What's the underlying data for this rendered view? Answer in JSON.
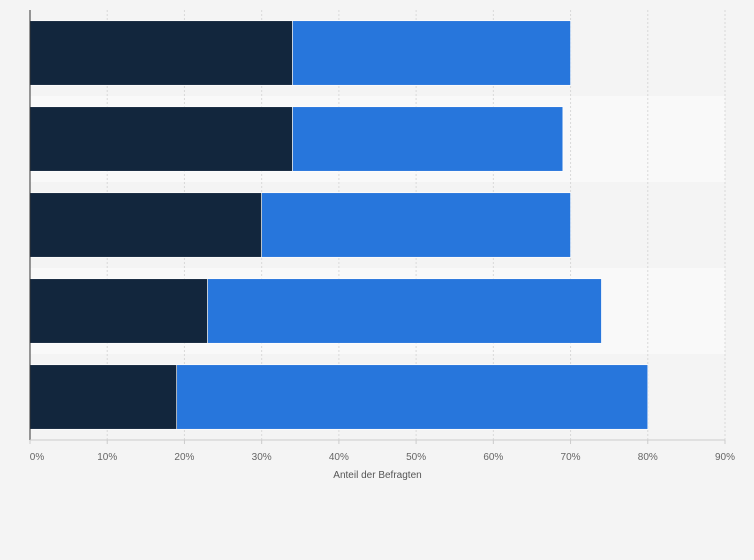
{
  "chart_data": {
    "type": "bar",
    "orientation": "horizontal",
    "stacked": true,
    "title": "",
    "xlabel": "Anteil der Befragten",
    "ylabel": "",
    "xlim": [
      0,
      90
    ],
    "x_ticks": [
      0,
      10,
      20,
      30,
      40,
      50,
      60,
      70,
      80,
      90
    ],
    "x_tick_labels": [
      "0%",
      "10%",
      "20%",
      "30%",
      "40%",
      "50%",
      "60%",
      "70%",
      "80%",
      "90%"
    ],
    "grid": true,
    "categories": [
      "",
      "",
      "",
      "",
      ""
    ],
    "series": [
      {
        "name": "",
        "color": "#12263d",
        "values": [
          34,
          34,
          30,
          23,
          19
        ]
      },
      {
        "name": "",
        "color": "#2776dc",
        "values": [
          36,
          35,
          40,
          51,
          61
        ]
      }
    ]
  }
}
